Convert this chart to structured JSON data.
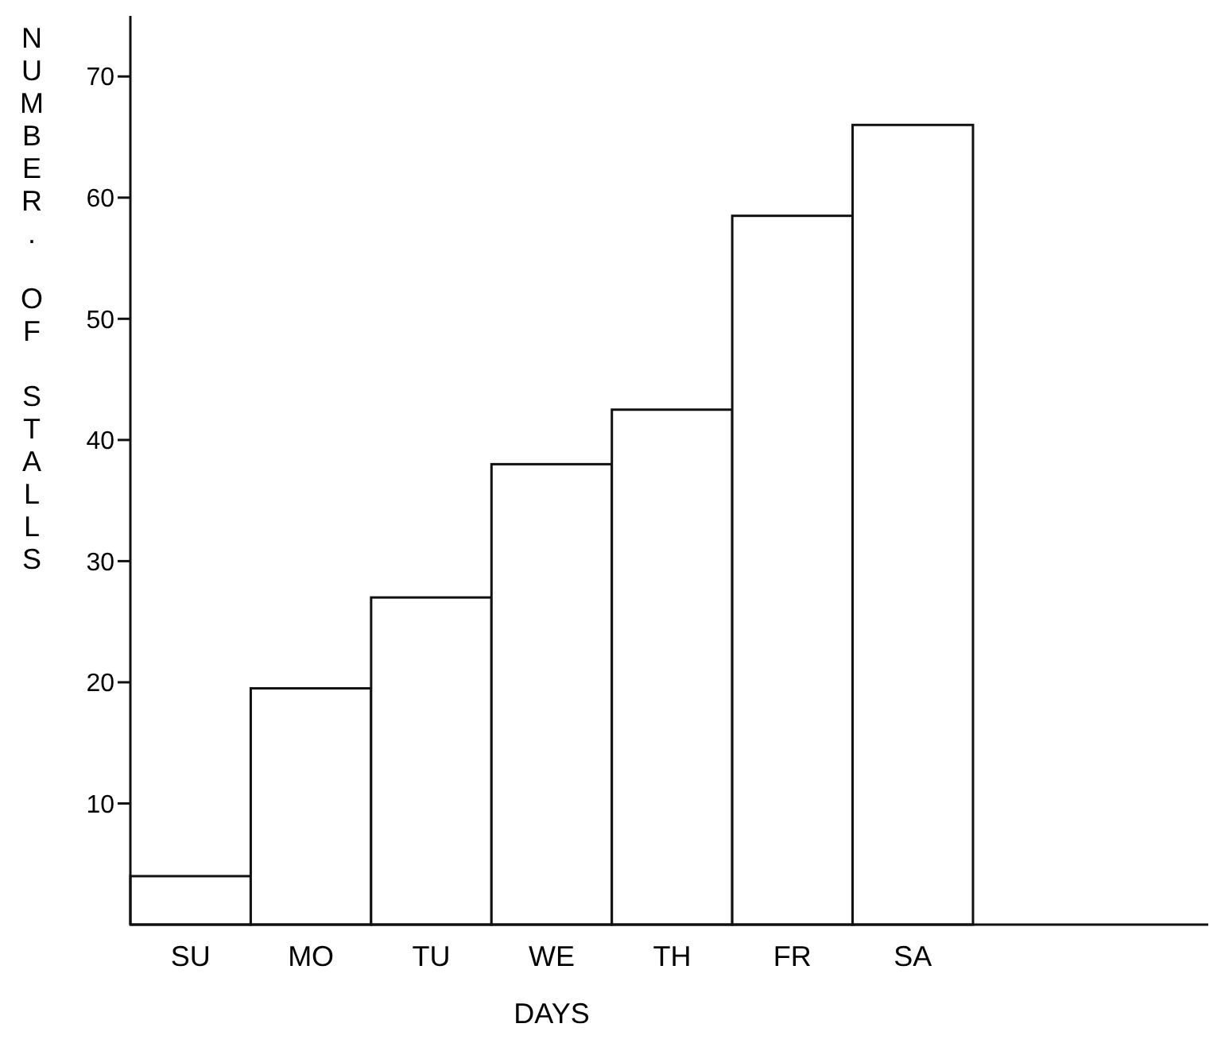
{
  "chart_data": {
    "type": "bar",
    "xlabel": "DAYS",
    "ylabel": "NUMBER. OF STALLS",
    "categories": [
      "SU",
      "MO",
      "TU",
      "WE",
      "TH",
      "FR",
      "SA"
    ],
    "values": [
      4,
      19.5,
      27,
      38,
      42.5,
      58.5,
      66
    ],
    "color": "#ffffff",
    "ylim": [
      0,
      75
    ],
    "yticks": [
      10,
      20,
      30,
      40,
      50,
      60,
      70
    ],
    "grid": false,
    "legend": false
  }
}
